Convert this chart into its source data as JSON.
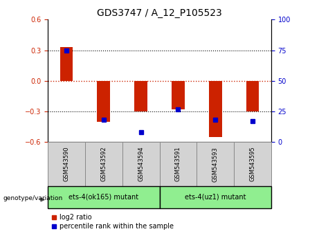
{
  "title": "GDS3747 / A_12_P105523",
  "samples": [
    "GSM543590",
    "GSM543592",
    "GSM543594",
    "GSM543591",
    "GSM543593",
    "GSM543595"
  ],
  "log2_ratio": [
    0.33,
    -0.4,
    -0.3,
    -0.28,
    -0.55,
    -0.3
  ],
  "percentile_rank": [
    75,
    18,
    8,
    27,
    18,
    17
  ],
  "bar_color": "#cc2200",
  "percentile_color": "#0000cc",
  "ylim_left": [
    -0.6,
    0.6
  ],
  "ylim_right": [
    0,
    100
  ],
  "yticks_left": [
    -0.6,
    -0.3,
    0,
    0.3,
    0.6
  ],
  "yticks_right": [
    0,
    25,
    50,
    75,
    100
  ],
  "zero_line_color": "#cc2200",
  "sample_bg_color": "#d3d3d3",
  "group1_color": "#90ee90",
  "group2_color": "#90ee90",
  "group1_label": "ets-4(ok165) mutant",
  "group2_label": "ets-4(uz1) mutant",
  "genotype_label": "genotype/variation",
  "legend_label1": "log2 ratio",
  "legend_label2": "percentile rank within the sample",
  "bar_width": 0.35
}
